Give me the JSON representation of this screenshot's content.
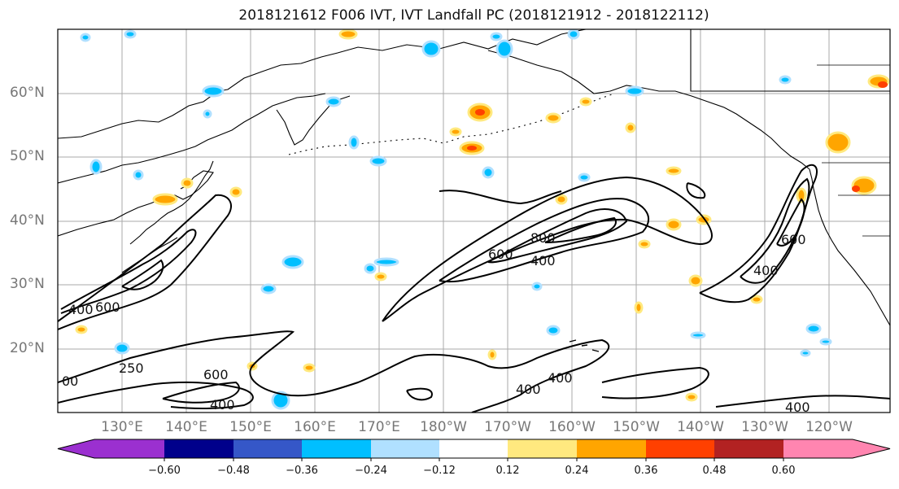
{
  "title": "2018121612 F006 IVT, IVT Landfall PC (2018121912 - 2018122112)",
  "lat_labels": [
    "60°N",
    "50°N",
    "40°N",
    "30°N",
    "20°N"
  ],
  "lon_labels": [
    "130°E",
    "140°E",
    "150°E",
    "160°E",
    "170°E",
    "180°W",
    "170°W",
    "160°W",
    "150°W",
    "140°W",
    "130°W",
    "120°W"
  ],
  "contour_labels": [
    "400",
    "600",
    "250",
    "600",
    "400",
    "600",
    "800",
    "400",
    "400",
    "400",
    "400",
    "600",
    "400",
    "00"
  ],
  "colorbar": {
    "ticks": [
      "−0.60",
      "−0.48",
      "−0.36",
      "−0.24",
      "−0.12",
      "0.12",
      "0.24",
      "0.36",
      "0.48",
      "0.60"
    ],
    "colors": [
      "#9b30d0",
      "#00008b",
      "#3557c8",
      "#00bfff",
      "#b0e0ff",
      "#ffffff",
      "#ffe97f",
      "#ffa500",
      "#ff4000",
      "#b22222",
      "#ff85b0"
    ]
  },
  "colors": {
    "positive_fill": "#ffa500",
    "positive_halo": "#ffe97f",
    "positive_strong": "#ff4000",
    "negative_fill": "#00bfff",
    "negative_halo": "#b0e0ff",
    "contour": "#000000",
    "grid": "#aaaaaa"
  }
}
